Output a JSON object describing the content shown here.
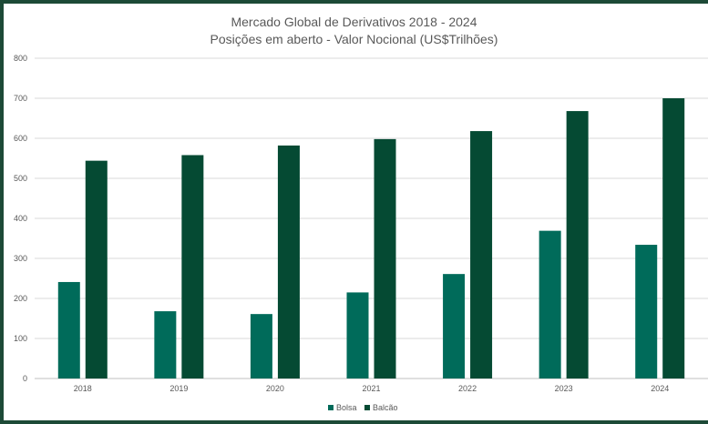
{
  "chart_data": {
    "type": "bar",
    "title": "Mercado Global de Derivativos 2018 - 2024",
    "subtitle": "Posições em aberto - Valor Nocional (US$Trilhões)",
    "categories": [
      "2018",
      "2019",
      "2020",
      "2021",
      "2022",
      "2023",
      "2024"
    ],
    "series": [
      {
        "name": "Bolsa",
        "color": "#006b5a",
        "values": [
          241,
          168,
          161,
          215,
          261,
          369,
          334
        ]
      },
      {
        "name": "Balcão",
        "color": "#054a33",
        "values": [
          544,
          558,
          582,
          598,
          618,
          668,
          700
        ]
      }
    ],
    "ylim": [
      0,
      800
    ],
    "yticks": [
      0,
      100,
      200,
      300,
      400,
      500,
      600,
      700,
      800
    ],
    "grid": true,
    "legend_position": "bottom",
    "colors": {
      "border": "#1d4a37",
      "gridline": "#d9d9d9",
      "text": "#595959"
    }
  }
}
